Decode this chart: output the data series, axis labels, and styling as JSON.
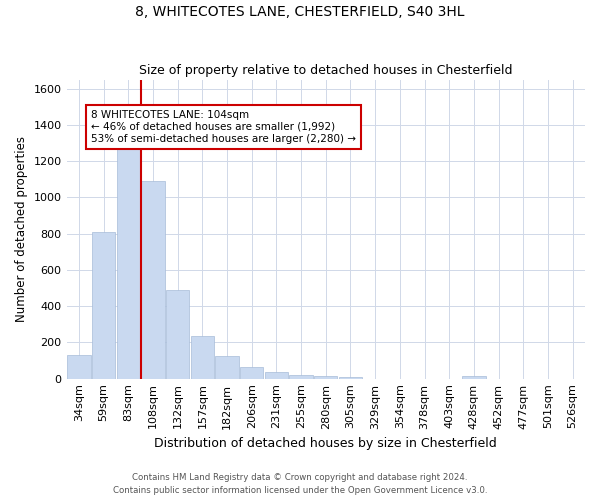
{
  "title1": "8, WHITECOTES LANE, CHESTERFIELD, S40 3HL",
  "title2": "Size of property relative to detached houses in Chesterfield",
  "xlabel": "Distribution of detached houses by size in Chesterfield",
  "ylabel": "Number of detached properties",
  "categories": [
    "34sqm",
    "59sqm",
    "83sqm",
    "108sqm",
    "132sqm",
    "157sqm",
    "182sqm",
    "206sqm",
    "231sqm",
    "255sqm",
    "280sqm",
    "305sqm",
    "329sqm",
    "354sqm",
    "378sqm",
    "403sqm",
    "428sqm",
    "452sqm",
    "477sqm",
    "501sqm",
    "526sqm"
  ],
  "values": [
    130,
    810,
    1300,
    1090,
    490,
    235,
    125,
    65,
    38,
    22,
    14,
    12,
    0,
    0,
    0,
    0,
    14,
    0,
    0,
    0,
    0
  ],
  "bar_color": "#c9d9f0",
  "bar_edge_color": "#a8bcd8",
  "grid_color": "#d0d8e8",
  "vline_color": "#cc0000",
  "vline_position": 2.5,
  "annotation_text": "8 WHITECOTES LANE: 104sqm\n← 46% of detached houses are smaller (1,992)\n53% of semi-detached houses are larger (2,280) →",
  "annotation_box_color": "#ffffff",
  "annotation_box_edge": "#cc0000",
  "ylim": [
    0,
    1650
  ],
  "yticks": [
    0,
    200,
    400,
    600,
    800,
    1000,
    1200,
    1400,
    1600
  ],
  "footer1": "Contains HM Land Registry data © Crown copyright and database right 2024.",
  "footer2": "Contains public sector information licensed under the Open Government Licence v3.0."
}
